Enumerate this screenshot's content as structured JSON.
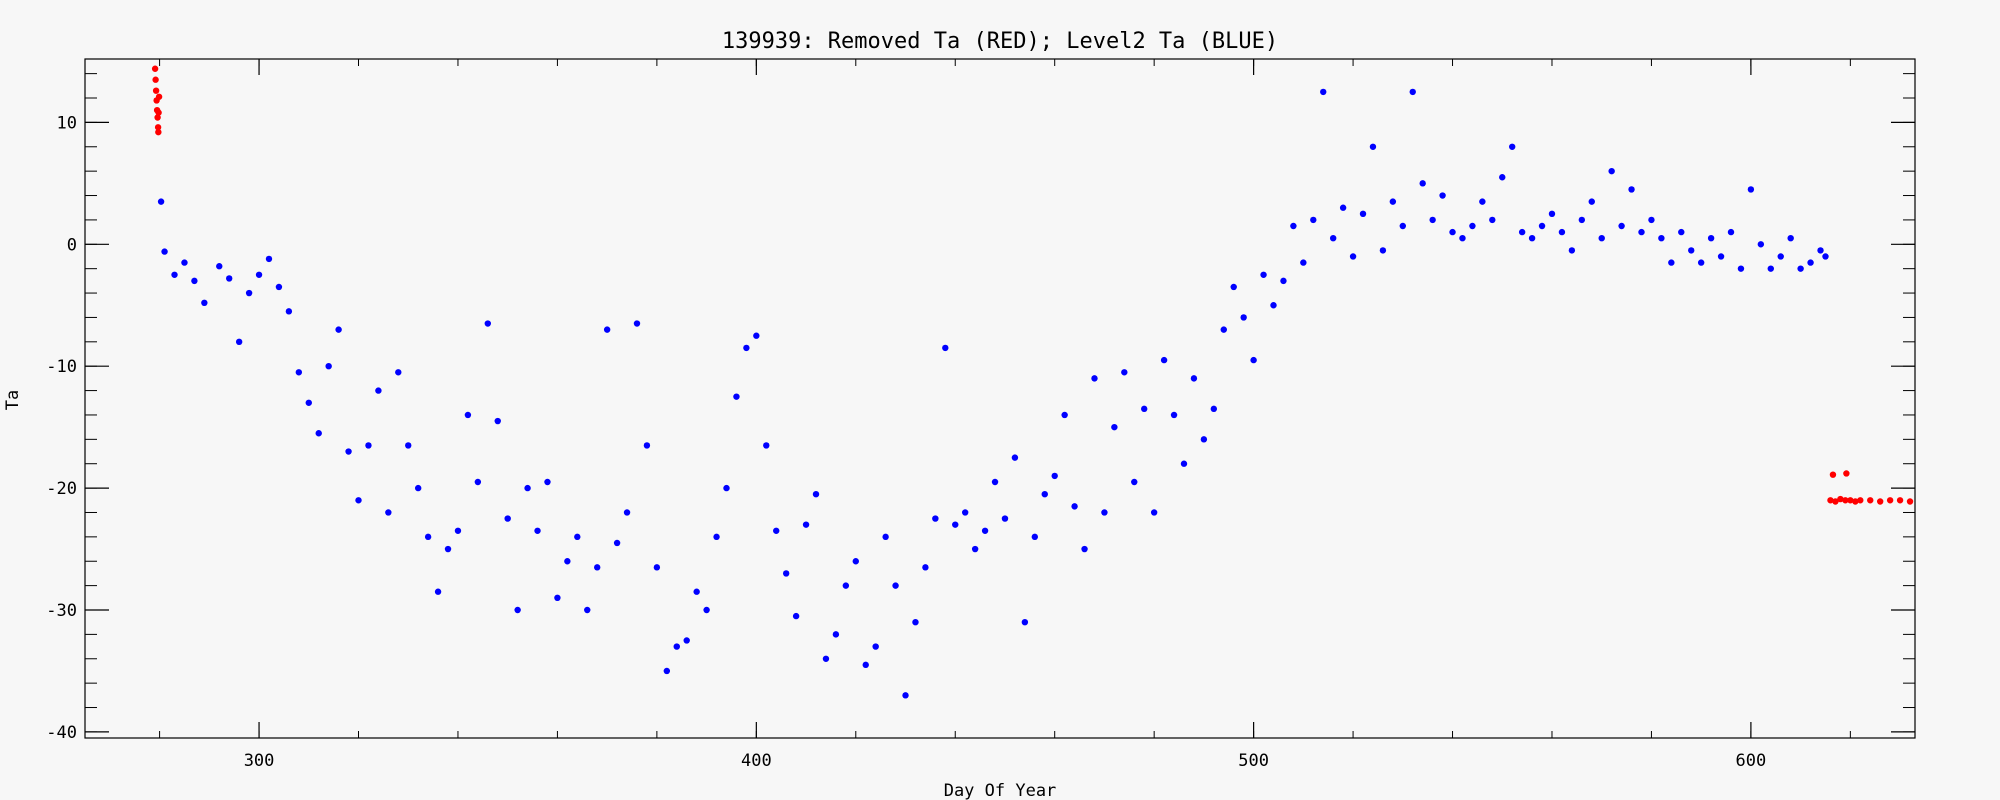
{
  "chart_data": {
    "type": "scatter",
    "title": "139939: Removed Ta (RED); Level2 Ta (BLUE)",
    "xlabel": "Day Of Year",
    "ylabel": "Ta",
    "xlim": [
      265,
      633
    ],
    "ylim": [
      -40.5,
      15.2
    ],
    "x_ticks": [
      300,
      400,
      500,
      600
    ],
    "y_ticks": [
      10,
      0,
      -10,
      -20,
      -30,
      -40
    ],
    "grid": false,
    "series": [
      {
        "color": "#ff0000",
        "points": [
          [
            279.1,
            14.4
          ],
          [
            279.2,
            13.5
          ],
          [
            279.3,
            12.6
          ],
          [
            279.4,
            11.8
          ],
          [
            279.5,
            11.0
          ],
          [
            279.6,
            10.4
          ],
          [
            279.7,
            9.6
          ],
          [
            279.75,
            9.2
          ],
          [
            279.8,
            10.8
          ],
          [
            279.9,
            12.1
          ],
          [
            616.5,
            -18.9
          ],
          [
            619.2,
            -18.8
          ],
          [
            616,
            -21.0
          ],
          [
            617,
            -21.1
          ],
          [
            618,
            -20.9
          ],
          [
            619,
            -21.0
          ],
          [
            620,
            -21.0
          ],
          [
            621,
            -21.1
          ],
          [
            622,
            -21.0
          ],
          [
            624,
            -21.0
          ],
          [
            626,
            -21.1
          ],
          [
            628,
            -21.0
          ],
          [
            630,
            -21.0
          ],
          [
            632,
            -21.1
          ]
        ]
      },
      {
        "color": "#0000ff",
        "points": [
          [
            280.3,
            3.5
          ],
          [
            281,
            -0.6
          ],
          [
            283,
            -2.5
          ],
          [
            285,
            -1.5
          ],
          [
            287,
            -3.0
          ],
          [
            289,
            -4.8
          ],
          [
            292,
            -1.8
          ],
          [
            294,
            -2.8
          ],
          [
            296,
            -8.0
          ],
          [
            298,
            -4.0
          ],
          [
            300,
            -2.5
          ],
          [
            302,
            -1.2
          ],
          [
            304,
            -3.5
          ],
          [
            306,
            -5.5
          ],
          [
            308,
            -10.5
          ],
          [
            310,
            -13.0
          ],
          [
            312,
            -15.5
          ],
          [
            314,
            -10.0
          ],
          [
            316,
            -7.0
          ],
          [
            318,
            -17.0
          ],
          [
            320,
            -21.0
          ],
          [
            322,
            -16.5
          ],
          [
            324,
            -12.0
          ],
          [
            326,
            -22.0
          ],
          [
            328,
            -10.5
          ],
          [
            330,
            -16.5
          ],
          [
            332,
            -20.0
          ],
          [
            334,
            -24.0
          ],
          [
            336,
            -28.5
          ],
          [
            338,
            -25.0
          ],
          [
            340,
            -23.5
          ],
          [
            342,
            -14.0
          ],
          [
            344,
            -19.5
          ],
          [
            346,
            -6.5
          ],
          [
            348,
            -14.5
          ],
          [
            350,
            -22.5
          ],
          [
            352,
            -30.0
          ],
          [
            354,
            -20.0
          ],
          [
            356,
            -23.5
          ],
          [
            358,
            -19.5
          ],
          [
            360,
            -29.0
          ],
          [
            362,
            -26.0
          ],
          [
            364,
            -24.0
          ],
          [
            366,
            -30.0
          ],
          [
            368,
            -26.5
          ],
          [
            370,
            -7.0
          ],
          [
            372,
            -24.5
          ],
          [
            374,
            -22.0
          ],
          [
            376,
            -6.5
          ],
          [
            378,
            -16.5
          ],
          [
            380,
            -26.5
          ],
          [
            382,
            -35.0
          ],
          [
            384,
            -33.0
          ],
          [
            386,
            -32.5
          ],
          [
            388,
            -28.5
          ],
          [
            390,
            -30.0
          ],
          [
            392,
            -24.0
          ],
          [
            394,
            -20.0
          ],
          [
            396,
            -12.5
          ],
          [
            398,
            -8.5
          ],
          [
            400,
            -7.5
          ],
          [
            402,
            -16.5
          ],
          [
            404,
            -23.5
          ],
          [
            406,
            -27.0
          ],
          [
            408,
            -30.5
          ],
          [
            410,
            -23.0
          ],
          [
            412,
            -20.5
          ],
          [
            414,
            -34.0
          ],
          [
            416,
            -32.0
          ],
          [
            418,
            -28.0
          ],
          [
            420,
            -26.0
          ],
          [
            422,
            -34.5
          ],
          [
            424,
            -33.0
          ],
          [
            426,
            -24.0
          ],
          [
            428,
            -28.0
          ],
          [
            430,
            -37.0
          ],
          [
            432,
            -31.0
          ],
          [
            434,
            -26.5
          ],
          [
            436,
            -22.5
          ],
          [
            438,
            -8.5
          ],
          [
            440,
            -23.0
          ],
          [
            442,
            -22.0
          ],
          [
            444,
            -25.0
          ],
          [
            446,
            -23.5
          ],
          [
            448,
            -19.5
          ],
          [
            450,
            -22.5
          ],
          [
            452,
            -17.5
          ],
          [
            454,
            -31.0
          ],
          [
            456,
            -24.0
          ],
          [
            458,
            -20.5
          ],
          [
            460,
            -19.0
          ],
          [
            462,
            -14.0
          ],
          [
            464,
            -21.5
          ],
          [
            466,
            -25.0
          ],
          [
            468,
            -11.0
          ],
          [
            470,
            -22.0
          ],
          [
            472,
            -15.0
          ],
          [
            474,
            -10.5
          ],
          [
            476,
            -19.5
          ],
          [
            478,
            -13.5
          ],
          [
            480,
            -22.0
          ],
          [
            482,
            -9.5
          ],
          [
            484,
            -14.0
          ],
          [
            486,
            -18.0
          ],
          [
            488,
            -11.0
          ],
          [
            490,
            -16.0
          ],
          [
            492,
            -13.5
          ],
          [
            494,
            -7.0
          ],
          [
            496,
            -3.5
          ],
          [
            498,
            -6.0
          ],
          [
            500,
            -9.5
          ],
          [
            502,
            -2.5
          ],
          [
            504,
            -5.0
          ],
          [
            506,
            -3.0
          ],
          [
            508,
            1.5
          ],
          [
            510,
            -1.5
          ],
          [
            512,
            2.0
          ],
          [
            514,
            12.5
          ],
          [
            516,
            0.5
          ],
          [
            518,
            3.0
          ],
          [
            520,
            -1.0
          ],
          [
            522,
            2.5
          ],
          [
            524,
            8.0
          ],
          [
            526,
            -0.5
          ],
          [
            528,
            3.5
          ],
          [
            530,
            1.5
          ],
          [
            532,
            12.5
          ],
          [
            534,
            5.0
          ],
          [
            536,
            2.0
          ],
          [
            538,
            4.0
          ],
          [
            540,
            1.0
          ],
          [
            542,
            0.5
          ],
          [
            544,
            1.5
          ],
          [
            546,
            3.5
          ],
          [
            548,
            2.0
          ],
          [
            550,
            5.5
          ],
          [
            552,
            8.0
          ],
          [
            554,
            1.0
          ],
          [
            556,
            0.5
          ],
          [
            558,
            1.5
          ],
          [
            560,
            2.5
          ],
          [
            562,
            1.0
          ],
          [
            564,
            -0.5
          ],
          [
            566,
            2.0
          ],
          [
            568,
            3.5
          ],
          [
            570,
            0.5
          ],
          [
            572,
            6.0
          ],
          [
            574,
            1.5
          ],
          [
            576,
            4.5
          ],
          [
            578,
            1.0
          ],
          [
            580,
            2.0
          ],
          [
            582,
            0.5
          ],
          [
            584,
            -1.5
          ],
          [
            586,
            1.0
          ],
          [
            588,
            -0.5
          ],
          [
            590,
            -1.5
          ],
          [
            592,
            0.5
          ],
          [
            594,
            -1.0
          ],
          [
            596,
            1.0
          ],
          [
            598,
            -2.0
          ],
          [
            600,
            4.5
          ],
          [
            602,
            0.0
          ],
          [
            604,
            -2.0
          ],
          [
            606,
            -1.0
          ],
          [
            608,
            0.5
          ],
          [
            610,
            -2.0
          ],
          [
            612,
            -1.5
          ],
          [
            614,
            -0.5
          ],
          [
            615,
            -1.0
          ]
        ]
      }
    ]
  }
}
